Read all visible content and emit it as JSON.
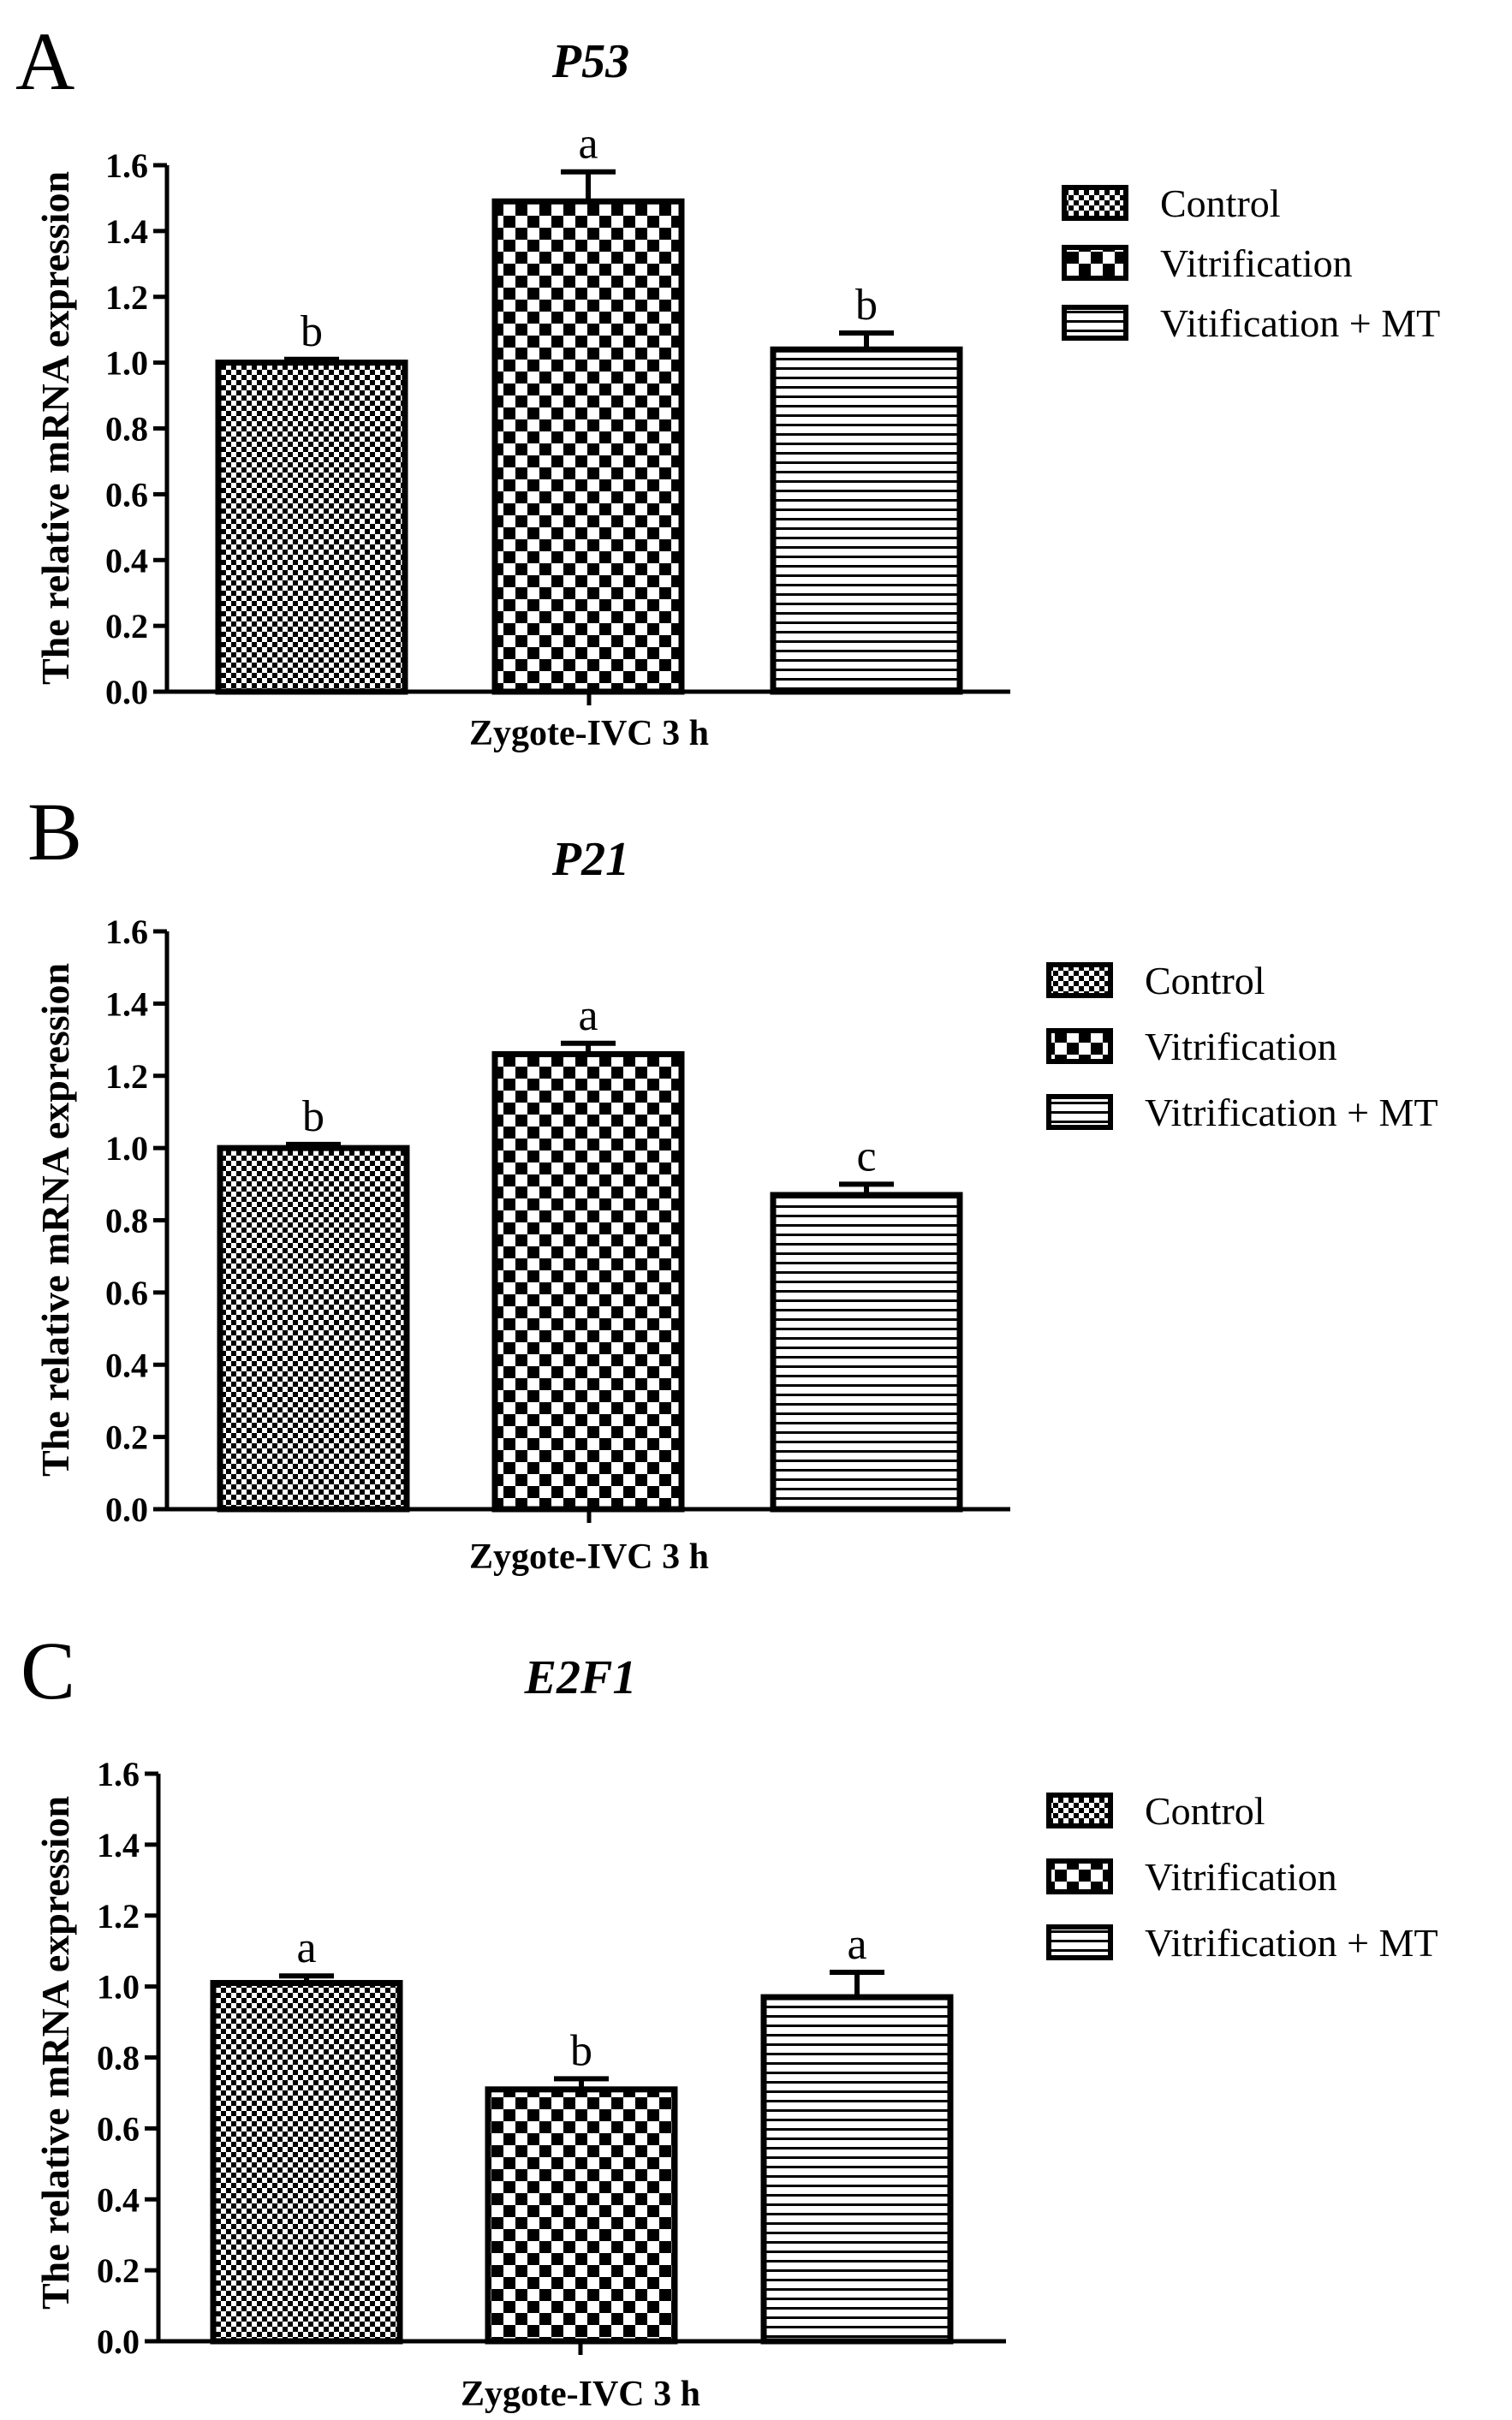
{
  "figure": {
    "legend_entries": [
      {
        "key": "control",
        "pattern": "fine-check"
      },
      {
        "key": "vitrification",
        "pattern": "coarse-check"
      },
      {
        "key": "mt",
        "pattern": "hstripe"
      }
    ]
  },
  "chart_data": [
    {
      "panel_letter": "A",
      "type": "bar",
      "title": "P53",
      "xlabel": "Zygote-IVC 3 h",
      "ylabel": "The relative mRNA expression",
      "ylim": [
        0,
        1.6
      ],
      "yticks": [
        "0.0",
        "0.2",
        "0.4",
        "0.6",
        "0.8",
        "1.0",
        "1.2",
        "1.4",
        "1.6"
      ],
      "legend": [
        "Control",
        "Vitrification",
        "Vitification + MT"
      ],
      "series": [
        {
          "name": "Control",
          "value": 1.0,
          "error": 0.01,
          "sig": "b"
        },
        {
          "name": "Vitrification",
          "value": 1.49,
          "error": 0.09,
          "sig": "a"
        },
        {
          "name": "Vitification + MT",
          "value": 1.04,
          "error": 0.05,
          "sig": "b"
        }
      ]
    },
    {
      "panel_letter": "B",
      "type": "bar",
      "title": "P21",
      "xlabel": "Zygote-IVC 3 h",
      "ylabel": "The relative mRNA expression",
      "ylim": [
        0,
        1.6
      ],
      "yticks": [
        "0.0",
        "0.2",
        "0.4",
        "0.6",
        "0.8",
        "1.0",
        "1.2",
        "1.4",
        "1.6"
      ],
      "legend": [
        "Control",
        "Vitrification",
        "Vitrification + MT"
      ],
      "series": [
        {
          "name": "Control",
          "value": 1.0,
          "error": 0.01,
          "sig": "b"
        },
        {
          "name": "Vitrification",
          "value": 1.26,
          "error": 0.03,
          "sig": "a"
        },
        {
          "name": "Vitrification + MT",
          "value": 0.87,
          "error": 0.03,
          "sig": "c"
        }
      ]
    },
    {
      "panel_letter": "C",
      "type": "bar",
      "title": "E2F1",
      "xlabel": "Zygote-IVC 3 h",
      "ylabel": "The relative mRNA expression",
      "ylim": [
        0,
        1.6
      ],
      "yticks": [
        "0.0",
        "0.2",
        "0.4",
        "0.6",
        "0.8",
        "1.0",
        "1.2",
        "1.4",
        "1.6"
      ],
      "legend": [
        "Control",
        "Vitrification",
        "Vitrification + MT"
      ],
      "series": [
        {
          "name": "Control",
          "value": 1.01,
          "error": 0.02,
          "sig": "a"
        },
        {
          "name": "Vitrification",
          "value": 0.71,
          "error": 0.03,
          "sig": "b"
        },
        {
          "name": "Vitrification + MT",
          "value": 0.97,
          "error": 0.07,
          "sig": "a"
        }
      ]
    }
  ]
}
